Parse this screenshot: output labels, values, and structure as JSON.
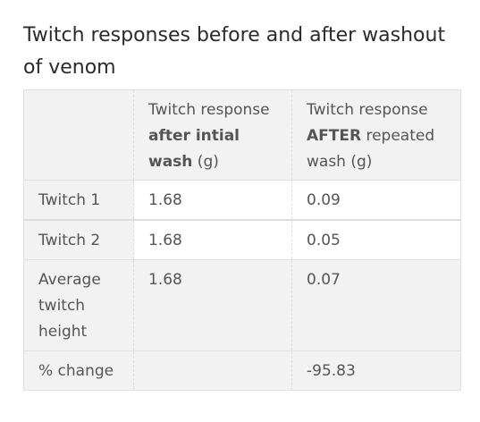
{
  "caption": "Twitch responses before and after washout of venom",
  "table": {
    "header": {
      "col0": "",
      "col1": {
        "line1": "Twitch response",
        "bold": "after intial wash",
        "suffix": " (g)"
      },
      "col2": {
        "line1": "Twitch response",
        "bold": "AFTER",
        "suffix": " repeated wash (g)"
      }
    },
    "rows": [
      {
        "label": "Twitch 1",
        "before": "1.68",
        "after": "0.09"
      },
      {
        "label": "Twitch 2",
        "before": "1.68",
        "after": "0.05"
      },
      {
        "label": "Average twitch height",
        "before": "1.68",
        "after": "0.07"
      },
      {
        "label": "% change",
        "before": "",
        "after": "-95.83"
      }
    ]
  }
}
